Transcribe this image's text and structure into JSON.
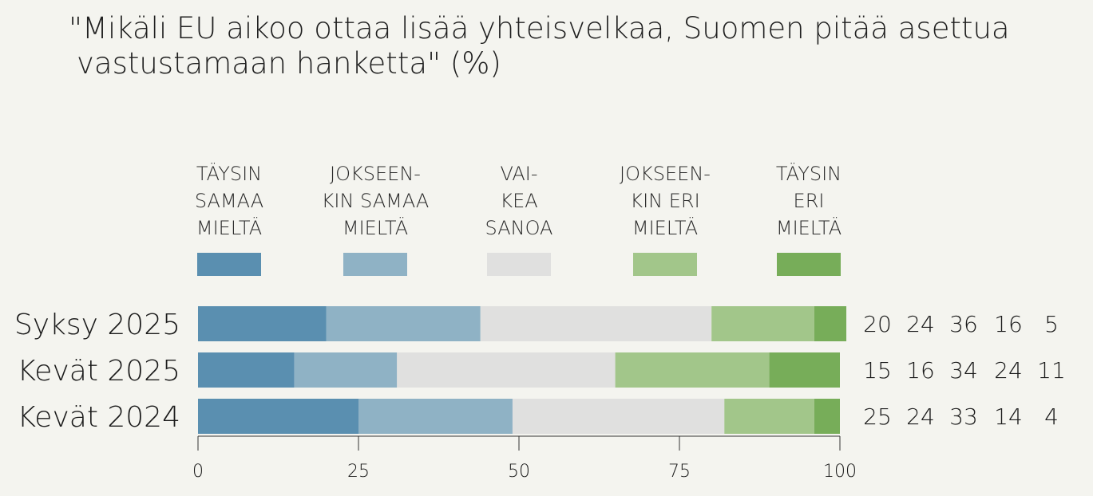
{
  "chart_data": {
    "type": "bar",
    "orientation": "horizontal",
    "stacked": true,
    "title": "\"Mikäli EU aikoo ottaa lisää yhteisvelkaa, Suomen pitää asettua vastustamaan hanketta\" (%)",
    "title_lines": [
      "\"Mikäli EU aikoo ottaa lisää yhteisvelkaa, Suomen pitää asettua",
      "vastustamaan hanketta\" (%)"
    ],
    "categories": [
      "Syksy 2025",
      "Kevät 2025",
      "Kevät 2024"
    ],
    "series": [
      {
        "name": "TÄYSIN SAMAA MIELTÄ",
        "label_lines": [
          "TÄYSIN",
          "SAMAA",
          "MIELTÄ"
        ],
        "color": "#5a8fb0",
        "values": [
          20,
          15,
          25
        ]
      },
      {
        "name": "JOKSEENKIN SAMAA MIELTÄ",
        "label_lines": [
          "JOKSEEN-",
          "KIN SAMAA",
          "MIELTÄ"
        ],
        "color": "#8fb2c5",
        "values": [
          24,
          16,
          24
        ]
      },
      {
        "name": "VAIKEA SANOA",
        "label_lines": [
          "VAI-",
          "KEA",
          "SANOA"
        ],
        "color": "#e0e0df",
        "values": [
          36,
          34,
          33
        ]
      },
      {
        "name": "JOKSEENKIN ERI MIELTÄ",
        "label_lines": [
          "JOKSEEN-",
          "KIN ERI",
          "MIELTÄ"
        ],
        "color": "#a2c68a",
        "values": [
          16,
          24,
          14
        ]
      },
      {
        "name": "TÄYSIN ERI MIELTÄ",
        "label_lines": [
          "TÄYSIN",
          "ERI",
          "MIELTÄ"
        ],
        "color": "#77ad59",
        "values": [
          5,
          11,
          4
        ]
      }
    ],
    "xlim": [
      0,
      100
    ],
    "xticks": [
      0,
      25,
      50,
      75,
      100
    ],
    "xlabel": "",
    "ylabel": "",
    "grid": false,
    "legend_position": "top"
  }
}
